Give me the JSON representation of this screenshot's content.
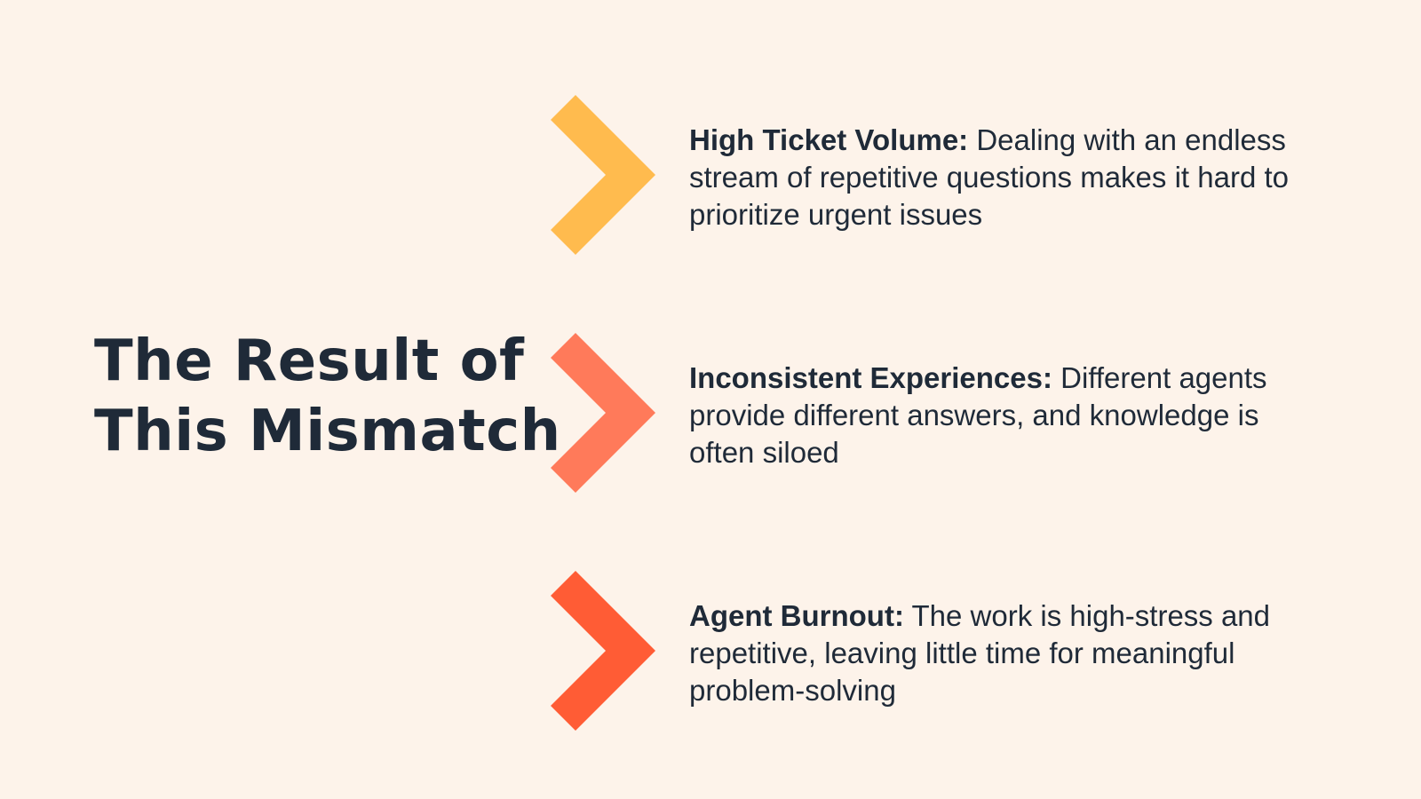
{
  "title": {
    "line1": "The Result of",
    "line2": "This Mismatch"
  },
  "items": [
    {
      "term": "High Ticket Volume:",
      "description": " Dealing with an endless stream of repetitive questions makes it hard to prioritize urgent issues",
      "icon": "chevron-right-icon",
      "color": "#ffbb4e"
    },
    {
      "term": "Inconsistent Experiences:",
      "description": " Different agents provide different answers, and knowledge is often siloed",
      "icon": "chevron-right-icon",
      "color": "#ff7a5a"
    },
    {
      "term": "Agent Burnout:",
      "description": " The work is high-stress and repetitive, leaving little time for meaningful problem-solving",
      "icon": "chevron-right-icon",
      "color": "#ff5c35"
    }
  ]
}
